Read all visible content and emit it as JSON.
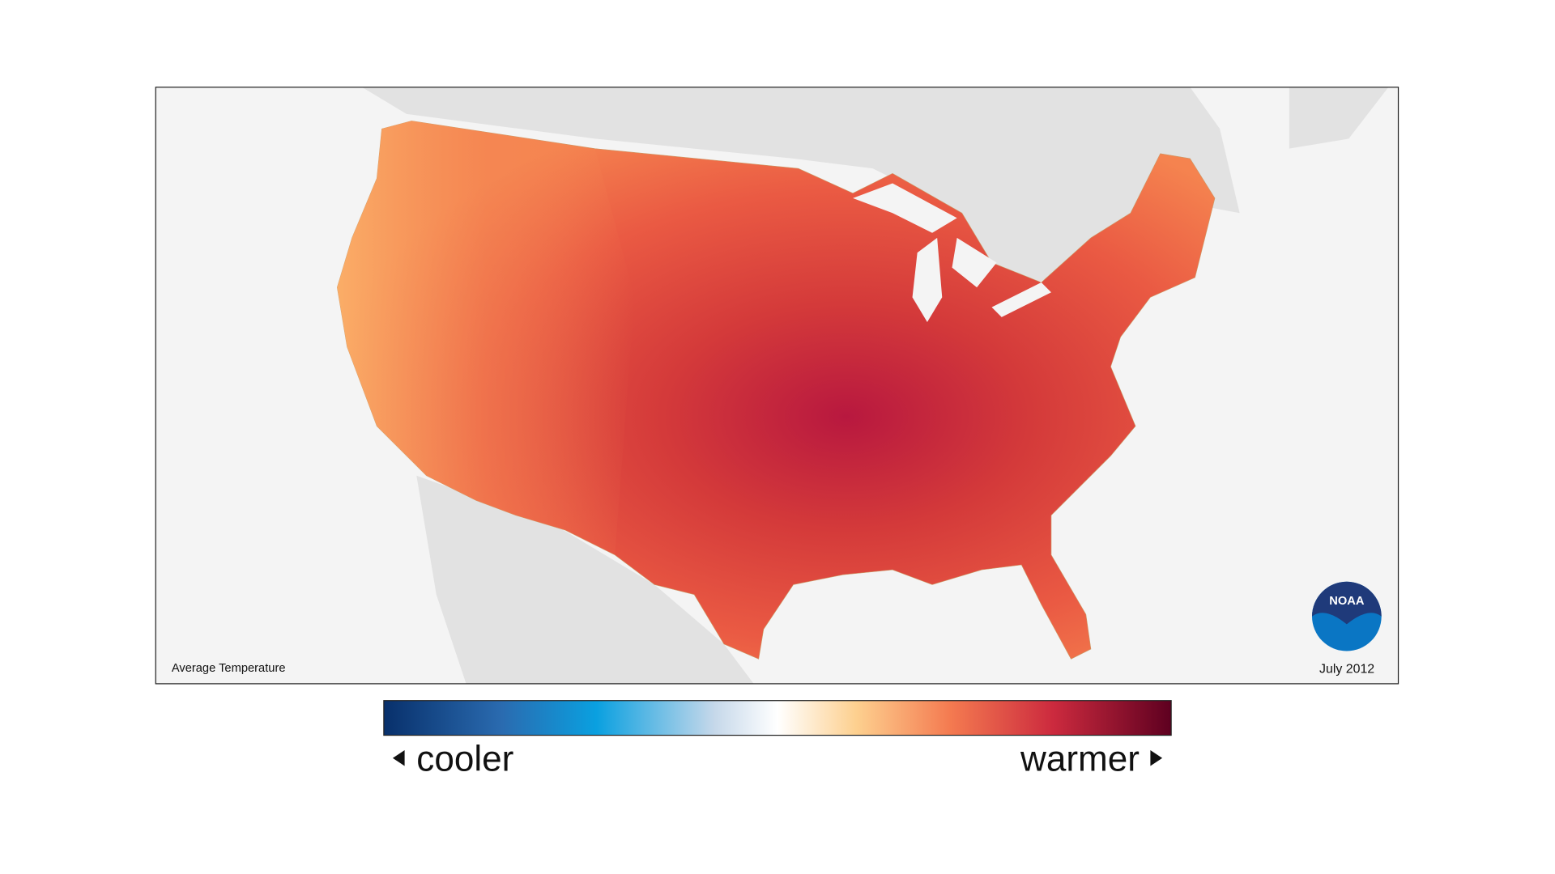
{
  "map": {
    "title": "Average Temperature",
    "date": "July 2012",
    "logo": "NOAA"
  },
  "legend": {
    "low": "cooler",
    "high": "warmer"
  }
}
